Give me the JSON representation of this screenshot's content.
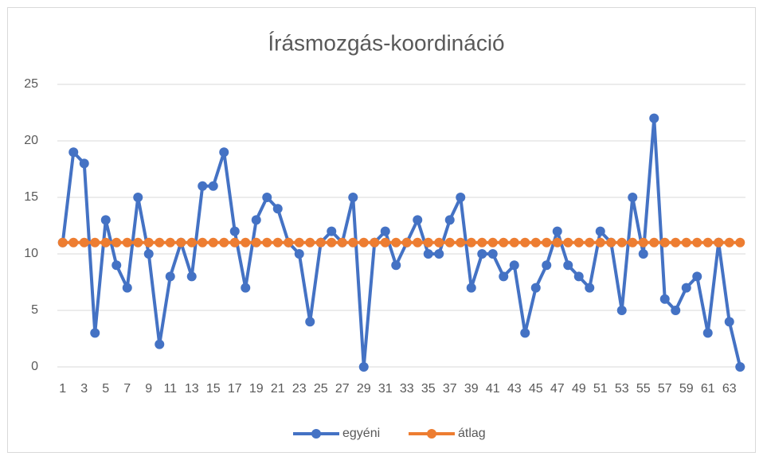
{
  "chart_data": {
    "type": "line",
    "title": "Írásmozgás-koordináció",
    "categories": [
      1,
      null,
      3,
      null,
      5,
      null,
      7,
      null,
      9,
      null,
      11,
      null,
      13,
      null,
      15,
      null,
      17,
      null,
      19,
      null,
      21,
      null,
      23,
      null,
      25,
      null,
      27,
      null,
      29,
      null,
      31,
      null,
      33,
      null,
      35,
      null,
      37,
      null,
      39,
      null,
      41,
      null,
      43,
      null,
      45,
      null,
      47,
      null,
      49,
      null,
      51,
      null,
      53,
      null,
      55,
      null,
      57,
      null,
      59,
      null,
      61,
      null,
      63,
      null
    ],
    "series": [
      {
        "name": "egyéni",
        "color": "#4472c4",
        "values": [
          11,
          19,
          18,
          3,
          13,
          9,
          7,
          15,
          10,
          2,
          8,
          11,
          8,
          16,
          16,
          19,
          12,
          7,
          13,
          15,
          14,
          11,
          10,
          4,
          11,
          12,
          11,
          15,
          0,
          11,
          12,
          9,
          11,
          13,
          10,
          10,
          13,
          15,
          7,
          10,
          10,
          8,
          9,
          3,
          7,
          9,
          12,
          9,
          8,
          7,
          12,
          11,
          5,
          15,
          10,
          22,
          6,
          5,
          7,
          8,
          3,
          11,
          4,
          0
        ]
      },
      {
        "name": "átlag",
        "color": "#ed7d31",
        "values": [
          11,
          11,
          11,
          11,
          11,
          11,
          11,
          11,
          11,
          11,
          11,
          11,
          11,
          11,
          11,
          11,
          11,
          11,
          11,
          11,
          11,
          11,
          11,
          11,
          11,
          11,
          11,
          11,
          11,
          11,
          11,
          11,
          11,
          11,
          11,
          11,
          11,
          11,
          11,
          11,
          11,
          11,
          11,
          11,
          11,
          11,
          11,
          11,
          11,
          11,
          11,
          11,
          11,
          11,
          11,
          11,
          11,
          11,
          11,
          11,
          11,
          11,
          11,
          11
        ]
      }
    ],
    "ylim": [
      0,
      25
    ],
    "yticks": [
      0,
      5,
      10,
      15,
      20,
      25
    ],
    "grid": true,
    "legend": "bottom"
  }
}
